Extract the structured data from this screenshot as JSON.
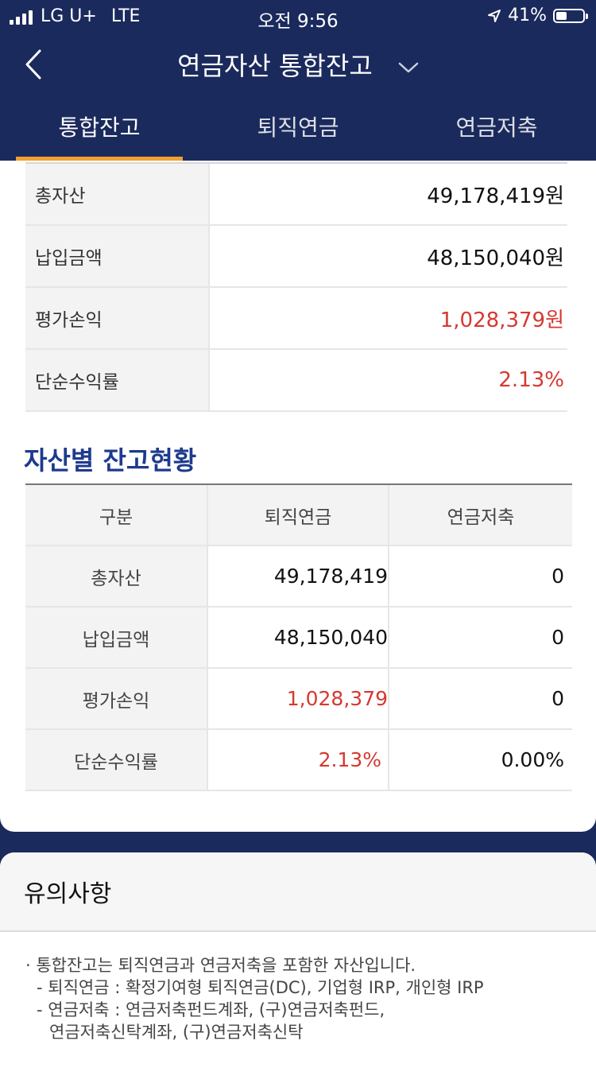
{
  "status_bar": {
    "carrier": "LG U+",
    "network": "LTE",
    "time": "오전 9:56",
    "battery_percent": "41%",
    "battery_level": 0.41
  },
  "nav": {
    "title": "연금자산 통합잔고",
    "back_icon": "chevron-left-icon",
    "dropdown_icon": "chevron-down-icon"
  },
  "tabs": [
    {
      "label": "통합잔고",
      "active": true
    },
    {
      "label": "퇴직연금",
      "active": false
    },
    {
      "label": "연금저축",
      "active": false
    }
  ],
  "summary": [
    {
      "label": "총자산",
      "value": "49,178,419원"
    },
    {
      "label": "납입금액",
      "value": "48,150,040원"
    },
    {
      "label": "평가손익",
      "value": "1,028,379원"
    },
    {
      "label": "단순수익률",
      "value": "2.13%"
    }
  ],
  "asset_section": {
    "title": "자산별 잔고현황",
    "headers": [
      "구분",
      "퇴직연금",
      "연금저축"
    ],
    "rows": [
      {
        "label": "총자산",
        "retirement": "49,178,419",
        "savings": "0"
      },
      {
        "label": "납입금액",
        "retirement": "48,150,040",
        "savings": "0"
      },
      {
        "label": "평가손익",
        "retirement": "1,028,379",
        "savings": "0"
      },
      {
        "label": "단순수익률",
        "retirement": "2.13%",
        "savings": "0.00%"
      }
    ]
  },
  "notice": {
    "title": "유의사항",
    "lines": [
      "· 통합잔고는 퇴직연금과 연금저축을 포함한 자산입니다.",
      "- 퇴직연금 : 확정기여형 퇴직연금(DC), 기업형 IRP, 개인형 IRP",
      "- 연금저축 : 연금저축펀드계좌, (구)연금저축펀드,",
      "연금저축신탁계좌, (구)연금저축신탁"
    ]
  },
  "colors": {
    "header_bg": "#1b2a5c",
    "tab_indicator": "#f0a02e",
    "profit_red": "#d6392f",
    "section_title": "#1e3a8e"
  }
}
